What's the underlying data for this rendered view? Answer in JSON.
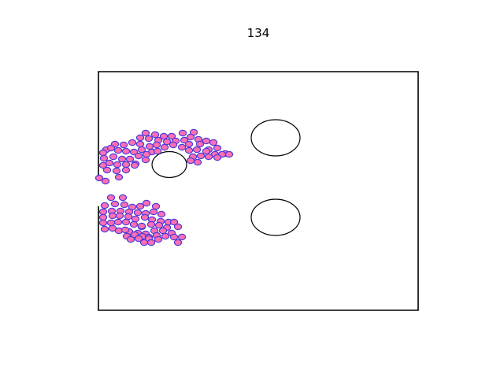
{
  "step_label": "134",
  "colors": {
    "particle_fill": "#ff6fb4",
    "particle_edge": "#4b3bd9",
    "wall": "#000000",
    "background": "#ffffff"
  },
  "obstacle_count": 3,
  "particle_count": 140
}
